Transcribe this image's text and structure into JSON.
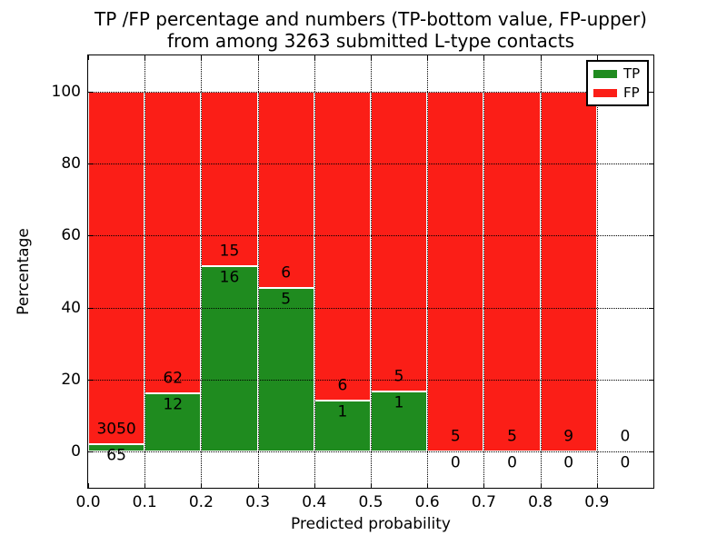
{
  "title": {
    "line1": "TP /FP percentage and numbers (TP-bottom value, FP-upper)",
    "line2": "from among 3263 submitted L-type contacts"
  },
  "axes": {
    "xlabel": "Predicted probability",
    "ylabel": "Percentage"
  },
  "legend": {
    "items": [
      {
        "label": "TP",
        "color": "#1f8b1f"
      },
      {
        "label": "FP",
        "color": "#fb1e17"
      }
    ]
  },
  "colors": {
    "tp_bar": "#1f8b1f",
    "fp_bar": "#fb1e17",
    "bar_edge": "#ffffff",
    "grid": "#000000",
    "text": "#000000",
    "background": "#ffffff"
  },
  "chart_data": {
    "type": "bar",
    "stacked": true,
    "title": "TP /FP percentage and numbers (TP-bottom value, FP-upper) from among 3263 submitted L-type contacts",
    "xlabel": "Predicted probability",
    "ylabel": "Percentage",
    "xlim": [
      0.0,
      1.0
    ],
    "ylim": [
      -10,
      110
    ],
    "grid": "dotted both axes",
    "legend_position": "upper right",
    "total_contacts": 3263,
    "series_names": [
      "TP",
      "FP"
    ],
    "x_ticks": [
      {
        "value": 0.0,
        "label": "0.0"
      },
      {
        "value": 0.1,
        "label": "0.1"
      },
      {
        "value": 0.2,
        "label": "0.2"
      },
      {
        "value": 0.3,
        "label": "0.3"
      },
      {
        "value": 0.4,
        "label": "0.4"
      },
      {
        "value": 0.5,
        "label": "0.5"
      },
      {
        "value": 0.6,
        "label": "0.6"
      },
      {
        "value": 0.7,
        "label": "0.7"
      },
      {
        "value": 0.8,
        "label": "0.8"
      },
      {
        "value": 0.9,
        "label": "0.9"
      }
    ],
    "y_ticks": [
      {
        "value": 0,
        "label": "0"
      },
      {
        "value": 20,
        "label": "20"
      },
      {
        "value": 40,
        "label": "40"
      },
      {
        "value": 60,
        "label": "60"
      },
      {
        "value": 80,
        "label": "80"
      },
      {
        "value": 100,
        "label": "100"
      }
    ],
    "bins": [
      {
        "x0": 0.0,
        "x1": 0.1,
        "tp_count": 65,
        "fp_count": 3050,
        "tp_pct": 2.09,
        "total_pct": 100
      },
      {
        "x0": 0.1,
        "x1": 0.2,
        "tp_count": 12,
        "fp_count": 62,
        "tp_pct": 16.22,
        "total_pct": 100
      },
      {
        "x0": 0.2,
        "x1": 0.3,
        "tp_count": 16,
        "fp_count": 15,
        "tp_pct": 51.61,
        "total_pct": 100
      },
      {
        "x0": 0.3,
        "x1": 0.4,
        "tp_count": 5,
        "fp_count": 6,
        "tp_pct": 45.45,
        "total_pct": 100
      },
      {
        "x0": 0.4,
        "x1": 0.5,
        "tp_count": 1,
        "fp_count": 6,
        "tp_pct": 14.29,
        "total_pct": 100
      },
      {
        "x0": 0.5,
        "x1": 0.6,
        "tp_count": 1,
        "fp_count": 5,
        "tp_pct": 16.67,
        "total_pct": 100
      },
      {
        "x0": 0.6,
        "x1": 0.7,
        "tp_count": 0,
        "fp_count": 5,
        "tp_pct": 0,
        "total_pct": 100
      },
      {
        "x0": 0.7,
        "x1": 0.8,
        "tp_count": 0,
        "fp_count": 5,
        "tp_pct": 0,
        "total_pct": 100
      },
      {
        "x0": 0.8,
        "x1": 0.9,
        "tp_count": 0,
        "fp_count": 9,
        "tp_pct": 0,
        "total_pct": 100
      },
      {
        "x0": 0.9,
        "x1": 1.0,
        "tp_count": 0,
        "fp_count": 0,
        "tp_pct": 0,
        "total_pct": 0
      }
    ]
  }
}
